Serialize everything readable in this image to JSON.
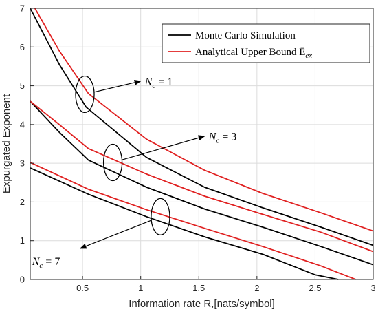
{
  "chart_data": {
    "type": "line",
    "xlabel": "Information rate R,[nats/symbol]",
    "ylabel": "Expurgated  Exponent",
    "xlim": [
      0.05,
      3
    ],
    "ylim": [
      0,
      7
    ],
    "xticks": [
      0.5,
      1,
      1.5,
      2,
      2.5,
      3
    ],
    "xtick_labels": [
      "0.5",
      "1",
      "1.5",
      "2",
      "2.5",
      "3"
    ],
    "yticks": [
      0,
      1,
      2,
      3,
      4,
      5,
      6,
      7
    ],
    "ytick_labels": [
      "0",
      "1",
      "2",
      "3",
      "4",
      "5",
      "6",
      "7"
    ],
    "grid": true,
    "legend_position": "top-right",
    "series": [
      {
        "name": "Monte Carlo Simulation",
        "color": "#000000",
        "group": "Nc=1",
        "x": [
          0.05,
          0.3,
          0.53,
          1.05,
          1.55,
          2.05,
          2.55,
          3.0
        ],
        "y": [
          7.0,
          5.55,
          4.45,
          3.15,
          2.38,
          1.85,
          1.35,
          0.88
        ]
      },
      {
        "name": "Analytical Upper Bound",
        "color": "#e02020",
        "group": "Nc=1",
        "x": [
          0.09,
          0.3,
          0.55,
          1.05,
          1.55,
          2.05,
          2.55,
          3.0
        ],
        "y": [
          7.0,
          5.9,
          4.8,
          3.62,
          2.82,
          2.22,
          1.72,
          1.25
        ]
      },
      {
        "name": "Monte Carlo Simulation",
        "color": "#000000",
        "group": "Nc=3",
        "x": [
          0.05,
          0.3,
          0.55,
          1.05,
          1.55,
          2.05,
          2.55,
          3.0
        ],
        "y": [
          4.6,
          3.8,
          3.08,
          2.38,
          1.82,
          1.35,
          0.85,
          0.38
        ]
      },
      {
        "name": "Analytical Upper Bound",
        "color": "#e02020",
        "group": "Nc=3",
        "x": [
          0.05,
          0.3,
          0.55,
          1.05,
          1.55,
          2.05,
          2.55,
          3.0
        ],
        "y": [
          4.6,
          4.0,
          3.38,
          2.72,
          2.15,
          1.68,
          1.22,
          0.72
        ]
      },
      {
        "name": "Monte Carlo Simulation",
        "color": "#000000",
        "group": "Nc=7",
        "x": [
          0.05,
          0.55,
          1.05,
          1.55,
          2.05,
          2.5,
          2.7
        ],
        "y": [
          2.88,
          2.2,
          1.62,
          1.1,
          0.65,
          0.12,
          0.0
        ]
      },
      {
        "name": "Analytical Upper Bound",
        "color": "#e02020",
        "group": "Nc=7",
        "x": [
          0.05,
          0.55,
          1.05,
          1.55,
          2.05,
          2.55,
          2.85
        ],
        "y": [
          3.02,
          2.33,
          1.8,
          1.32,
          0.85,
          0.35,
          0.0
        ]
      }
    ],
    "legend": [
      {
        "label": "Monte Carlo Simulation",
        "color": "#000000"
      },
      {
        "label": "Analytical Upper Bound Ē",
        "sub": "ex",
        "color": "#e02020"
      }
    ],
    "annotations": [
      {
        "label": "N",
        "sub": "c",
        "rest": " = 1",
        "ellipse": {
          "cx": 0.52,
          "cy": 4.78,
          "rx": 0.08,
          "ry": 0.47
        },
        "arrow_to": [
          1.0,
          5.12
        ]
      },
      {
        "label": "N",
        "sub": "c",
        "rest": " = 3",
        "ellipse": {
          "cx": 0.76,
          "cy": 3.02,
          "rx": 0.08,
          "ry": 0.47
        },
        "arrow_to": [
          1.55,
          3.7
        ]
      },
      {
        "label": "N",
        "sub": "c",
        "rest": " = 7",
        "ellipse": {
          "cx": 1.17,
          "cy": 1.62,
          "rx": 0.08,
          "ry": 0.47
        },
        "arrow_to": [
          0.48,
          0.8
        ]
      }
    ]
  }
}
